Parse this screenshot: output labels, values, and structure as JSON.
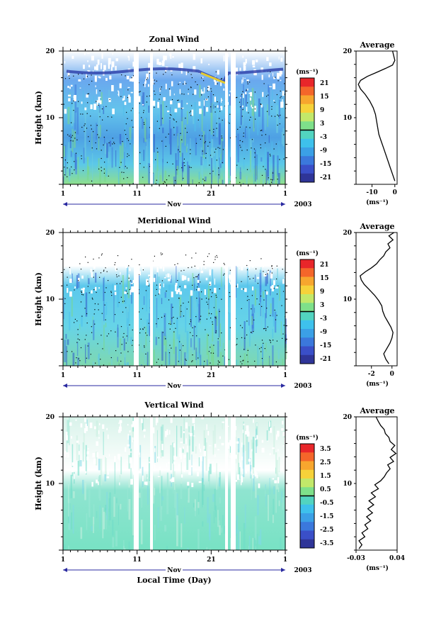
{
  "chart_data": [
    {
      "type": "heatmap",
      "title": "Zonal Wind",
      "ylabel": "Height (km)",
      "ylim": [
        0,
        20
      ],
      "y_ticks": [
        "20",
        "10"
      ],
      "x_ticks": [
        "1",
        "11",
        "21",
        "1"
      ],
      "month_label": "Nov",
      "year_label": "2003",
      "unit_label": "(ms⁻¹)",
      "colorbar_ticks": [
        "21",
        "15",
        "9",
        "3",
        "-3",
        "-9",
        "-15",
        "-21"
      ],
      "profile": {
        "title": "Average",
        "xlabel": "(ms⁻¹)",
        "x_ticks": [
          "-10",
          "0"
        ],
        "y_ticks": [
          "20",
          "10"
        ],
        "xlim": [
          -17,
          1
        ],
        "points": [
          [
            0,
            0.5
          ],
          [
            -1,
            1.5
          ],
          [
            -2,
            2.5
          ],
          [
            -3,
            3.5
          ],
          [
            -4,
            4.5
          ],
          [
            -5,
            5.5
          ],
          [
            -6,
            6.5
          ],
          [
            -7,
            7.5
          ],
          [
            -7.5,
            8.5
          ],
          [
            -8,
            9.5
          ],
          [
            -8.5,
            10.5
          ],
          [
            -9.5,
            11.5
          ],
          [
            -11,
            12.5
          ],
          [
            -13,
            13.5
          ],
          [
            -15,
            14.3
          ],
          [
            -16,
            15
          ],
          [
            -15,
            15.6
          ],
          [
            -12,
            16.2
          ],
          [
            -8,
            16.8
          ],
          [
            -4,
            17.4
          ],
          [
            -1,
            17.9
          ],
          [
            0,
            18.6
          ],
          [
            -0.5,
            19.3
          ],
          [
            -1,
            20
          ]
        ]
      }
    },
    {
      "type": "heatmap",
      "title": "Meridional Wind",
      "ylabel": "Height (km)",
      "ylim": [
        0,
        20
      ],
      "y_ticks": [
        "20",
        "10"
      ],
      "x_ticks": [
        "1",
        "11",
        "21",
        "1"
      ],
      "month_label": "Nov",
      "year_label": "2003",
      "unit_label": "(ms⁻¹)",
      "colorbar_ticks": [
        "21",
        "15",
        "9",
        "3",
        "-3",
        "-9",
        "-15",
        "-21"
      ],
      "profile": {
        "title": "Average",
        "xlabel": "(ms⁻¹)",
        "x_ticks": [
          "-2",
          "0"
        ],
        "y_ticks": [
          "20",
          "10"
        ],
        "xlim": [
          -3.5,
          0.5
        ],
        "points": [
          [
            -0.3,
            0.3
          ],
          [
            -0.6,
            1
          ],
          [
            -0.8,
            1.8
          ],
          [
            -0.5,
            2.6
          ],
          [
            -0.2,
            3.4
          ],
          [
            0,
            4.2
          ],
          [
            0.1,
            5
          ],
          [
            -0.1,
            5.8
          ],
          [
            -0.4,
            6.6
          ],
          [
            -0.7,
            7.4
          ],
          [
            -0.9,
            8.2
          ],
          [
            -1,
            9
          ],
          [
            -1.3,
            9.8
          ],
          [
            -1.7,
            10.6
          ],
          [
            -2.2,
            11.4
          ],
          [
            -2.7,
            12.2
          ],
          [
            -3,
            12.9
          ],
          [
            -3.1,
            13.5
          ],
          [
            -2.6,
            14.1
          ],
          [
            -2,
            14.7
          ],
          [
            -1.5,
            15.3
          ],
          [
            -1.2,
            15.9
          ],
          [
            -0.8,
            16.5
          ],
          [
            -0.6,
            17.1
          ],
          [
            -0.2,
            17.7
          ],
          [
            -0.4,
            18.3
          ],
          [
            0.1,
            18.9
          ],
          [
            -0.3,
            19.5
          ],
          [
            0.2,
            20
          ]
        ]
      }
    },
    {
      "type": "heatmap",
      "title": "Vertical Wind",
      "xlabel": "Local Time (Day)",
      "ylabel": "Height (km)",
      "ylim": [
        0,
        20
      ],
      "y_ticks": [
        "20",
        "10"
      ],
      "x_ticks": [
        "1",
        "11",
        "21",
        "1"
      ],
      "month_label": "Nov",
      "year_label": "2003",
      "unit_label": "(ms⁻¹)",
      "colorbar_ticks": [
        "3.5",
        "2.5",
        "1.5",
        "0.5",
        "-0.5",
        "-1.5",
        "-2.5",
        "-3.5"
      ],
      "profile": {
        "title": "Average",
        "xlabel": "(ms⁻¹)",
        "x_ticks": [
          "-0.03",
          "0.04"
        ],
        "y_ticks": [
          "20",
          "10"
        ],
        "xlim": [
          -0.03,
          0.04
        ],
        "points": [
          [
            -0.025,
            0.2
          ],
          [
            -0.02,
            0.8
          ],
          [
            -0.025,
            1.4
          ],
          [
            -0.015,
            2
          ],
          [
            -0.02,
            2.6
          ],
          [
            -0.01,
            3.2
          ],
          [
            -0.015,
            3.8
          ],
          [
            -0.005,
            4.4
          ],
          [
            -0.012,
            5
          ],
          [
            -0.002,
            5.6
          ],
          [
            -0.01,
            6.2
          ],
          [
            0,
            6.8
          ],
          [
            -0.008,
            7.4
          ],
          [
            0.003,
            8
          ],
          [
            -0.004,
            8.6
          ],
          [
            0.008,
            9.2
          ],
          [
            0.002,
            9.8
          ],
          [
            0.012,
            10.4
          ],
          [
            0.018,
            11
          ],
          [
            0.022,
            11.6
          ],
          [
            0.028,
            12.2
          ],
          [
            0.024,
            12.8
          ],
          [
            0.034,
            13.3
          ],
          [
            0.028,
            13.9
          ],
          [
            0.038,
            14.5
          ],
          [
            0.03,
            15.1
          ],
          [
            0.036,
            15.7
          ],
          [
            0.028,
            16.3
          ],
          [
            0.026,
            16.9
          ],
          [
            0.02,
            17.5
          ],
          [
            0.018,
            18.1
          ],
          [
            0.012,
            18.7
          ],
          [
            0.008,
            19.3
          ],
          [
            0.004,
            20
          ]
        ]
      }
    }
  ]
}
